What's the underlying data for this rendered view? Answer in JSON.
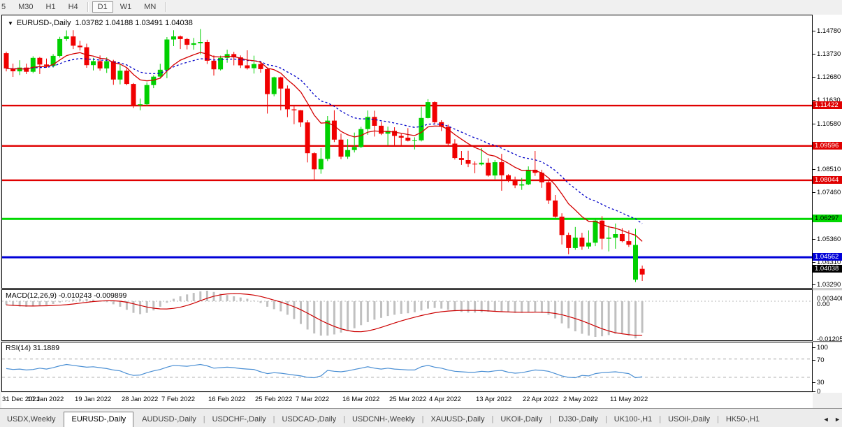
{
  "toolbar": {
    "timeframes": [
      "5",
      "M30",
      "H1",
      "H4",
      "D1",
      "W1",
      "MN"
    ],
    "active": "D1",
    "separators_after": [
      "H4",
      "MN"
    ]
  },
  "main_chart": {
    "dropdown_icon": "▼",
    "symbol": "EURUSD-,Daily",
    "ohlc_display": "1.03782 1.04188 1.03491 1.04038"
  },
  "chart_data": {
    "type": "candlestick",
    "symbol": "EURUSD",
    "timeframe": "Daily",
    "x_labels": [
      "31 Dec 2021",
      "10 Jan 2022",
      "19 Jan 2022",
      "28 Jan 2022",
      "7 Feb 2022",
      "16 Feb 2022",
      "25 Feb 2022",
      "7 Mar 2022",
      "16 Mar 2022",
      "25 Mar 2022",
      "4 Apr 2022",
      "13 Apr 2022",
      "22 Apr 2022",
      "2 May 2022",
      "11 May 2022"
    ],
    "x_label_bars": [
      0,
      6,
      13,
      20,
      26,
      33,
      40,
      46,
      53,
      60,
      66,
      73,
      80,
      86,
      93
    ],
    "price_axis": {
      "top_price": 1.155,
      "bottom_price": 1.03176,
      "ticks": [
        1.1478,
        1.1373,
        1.1268,
        1.1163,
        1.1058,
        1.0851,
        1.0746,
        1.0536,
        1.0431,
        1.0329
      ]
    },
    "colors": {
      "bull": "#00d000",
      "bear": "#f00000",
      "ma_fast": "#d40000",
      "ma_slow": "#0000c8",
      "hline_red": "#e00000",
      "hline_green": "#00d800",
      "hline_blue": "#0000d8",
      "macd_hist": "#c0c0c0",
      "macd_signal": "#cc0000",
      "rsi_line": "#4a8fd4",
      "level_dash": "#aaaaaa"
    },
    "hlines": [
      {
        "price": 1.11422,
        "label": "1.11422",
        "color": "#e00000",
        "text_color": "#ffffff"
      },
      {
        "price": 1.09596,
        "label": "1.09596",
        "color": "#e00000",
        "text_color": "#ffffff"
      },
      {
        "price": 1.08044,
        "label": "1.08044",
        "color": "#e00000",
        "text_color": "#ffffff"
      },
      {
        "price": 1.06297,
        "label": "1.06297",
        "color": "#00d800",
        "text_color": "#000000"
      },
      {
        "price": 1.04562,
        "label": "1.04562",
        "color": "#0000d8",
        "text_color": "#ffffff"
      }
    ],
    "current_price": {
      "value": 1.04038,
      "label": "1.04038",
      "bg": "#000000",
      "text_color": "#ffffff"
    },
    "ma_periods": {
      "fast": 10,
      "slow": 20
    },
    "candles": [
      [
        1.1379,
        1.1386,
        1.1297,
        1.131
      ],
      [
        1.131,
        1.1332,
        1.1272,
        1.1297
      ],
      [
        1.1297,
        1.1347,
        1.128,
        1.1314
      ],
      [
        1.1314,
        1.1332,
        1.1285,
        1.1295
      ],
      [
        1.1295,
        1.1365,
        1.1289,
        1.1358
      ],
      [
        1.1358,
        1.1362,
        1.1285,
        1.1328
      ],
      [
        1.1328,
        1.1355,
        1.1313,
        1.1322
      ],
      [
        1.1322,
        1.1375,
        1.1314,
        1.1367
      ],
      [
        1.1367,
        1.1453,
        1.1359,
        1.1443
      ],
      [
        1.1443,
        1.1482,
        1.1434,
        1.1455
      ],
      [
        1.1455,
        1.1483,
        1.1398,
        1.1413
      ],
      [
        1.1413,
        1.1435,
        1.1391,
        1.1406
      ],
      [
        1.1406,
        1.1422,
        1.1313,
        1.1325
      ],
      [
        1.1325,
        1.1358,
        1.1301,
        1.1343
      ],
      [
        1.1343,
        1.1369,
        1.13,
        1.131
      ],
      [
        1.131,
        1.136,
        1.129,
        1.1343
      ],
      [
        1.1343,
        1.1349,
        1.1236,
        1.126
      ],
      [
        1.126,
        1.1328,
        1.1238,
        1.13
      ],
      [
        1.13,
        1.131,
        1.1234,
        1.124
      ],
      [
        1.124,
        1.1244,
        1.1131,
        1.1144
      ],
      [
        1.1144,
        1.1174,
        1.1121,
        1.1148
      ],
      [
        1.1148,
        1.1247,
        1.1141,
        1.1235
      ],
      [
        1.1235,
        1.1279,
        1.1221,
        1.1273
      ],
      [
        1.1273,
        1.1331,
        1.1265,
        1.1304
      ],
      [
        1.1304,
        1.1452,
        1.1266,
        1.1441
      ],
      [
        1.1441,
        1.1483,
        1.1411,
        1.1455
      ],
      [
        1.1455,
        1.1459,
        1.1398,
        1.1443
      ],
      [
        1.1443,
        1.1448,
        1.1396,
        1.1417
      ],
      [
        1.1417,
        1.1448,
        1.1395,
        1.1424
      ],
      [
        1.1424,
        1.1488,
        1.1374,
        1.143
      ],
      [
        1.143,
        1.144,
        1.133,
        1.1345
      ],
      [
        1.1345,
        1.1369,
        1.1278,
        1.1306
      ],
      [
        1.1306,
        1.1368,
        1.1301,
        1.1358
      ],
      [
        1.1358,
        1.1395,
        1.1336,
        1.1375
      ],
      [
        1.1375,
        1.1385,
        1.1324,
        1.136
      ],
      [
        1.136,
        1.1369,
        1.1312,
        1.1324
      ],
      [
        1.1324,
        1.1392,
        1.1305,
        1.1311
      ],
      [
        1.1311,
        1.1368,
        1.1287,
        1.133
      ],
      [
        1.133,
        1.1344,
        1.1291,
        1.1307
      ],
      [
        1.1307,
        1.1315,
        1.1106,
        1.1194
      ],
      [
        1.1194,
        1.1273,
        1.1184,
        1.127
      ],
      [
        1.127,
        1.1273,
        1.1121,
        1.1219
      ],
      [
        1.1219,
        1.1233,
        1.109,
        1.1125
      ],
      [
        1.1125,
        1.1139,
        1.1058,
        1.1121
      ],
      [
        1.1121,
        1.1122,
        1.1045,
        1.1066
      ],
      [
        1.1066,
        1.1076,
        1.0885,
        1.0927
      ],
      [
        1.0927,
        1.0931,
        1.0806,
        1.0854
      ],
      [
        1.0854,
        1.095,
        1.0834,
        1.0901
      ],
      [
        1.0901,
        1.1095,
        1.0891,
        1.1074
      ],
      [
        1.1074,
        1.1121,
        1.0977,
        1.0988
      ],
      [
        1.0988,
        1.1015,
        1.09,
        1.0911
      ],
      [
        1.0911,
        1.099,
        1.0901,
        1.0941
      ],
      [
        1.0941,
        1.102,
        1.093,
        1.0955
      ],
      [
        1.0955,
        1.1046,
        1.095,
        1.1036
      ],
      [
        1.1036,
        1.112,
        1.101,
        1.1091
      ],
      [
        1.1091,
        1.1119,
        1.1002,
        1.1051
      ],
      [
        1.1051,
        1.1069,
        1.1009,
        1.1015
      ],
      [
        1.1015,
        1.1047,
        1.0962,
        1.1028
      ],
      [
        1.1028,
        1.1044,
        1.0963,
        1.1005
      ],
      [
        1.1005,
        1.1014,
        1.096,
        1.0997
      ],
      [
        1.0997,
        1.104,
        1.098,
        1.0983
      ],
      [
        1.0983,
        1.0999,
        1.0944,
        1.0985
      ],
      [
        1.0985,
        1.1137,
        1.098,
        1.1086
      ],
      [
        1.1086,
        1.1171,
        1.1084,
        1.1158
      ],
      [
        1.1158,
        1.1161,
        1.106,
        1.1067
      ],
      [
        1.1067,
        1.1076,
        1.1027,
        1.1046
      ],
      [
        1.1046,
        1.1056,
        1.096,
        1.097
      ],
      [
        1.097,
        1.099,
        1.0898,
        1.0905
      ],
      [
        1.0905,
        1.0937,
        1.0874,
        1.0896
      ],
      [
        1.0896,
        1.0938,
        1.0864,
        1.0879
      ],
      [
        1.0879,
        1.089,
        1.0836,
        1.0876
      ],
      [
        1.0876,
        1.095,
        1.0871,
        1.0884
      ],
      [
        1.0884,
        1.0904,
        1.0821,
        1.0826
      ],
      [
        1.0826,
        1.0896,
        1.0809,
        1.0886
      ],
      [
        1.0886,
        1.0924,
        1.0757,
        1.0827
      ],
      [
        1.0827,
        1.0832,
        1.0796,
        1.0808
      ],
      [
        1.0808,
        1.0821,
        1.0769,
        1.0781
      ],
      [
        1.0781,
        1.0815,
        1.0761,
        1.0786
      ],
      [
        1.0786,
        1.0867,
        1.0782,
        1.0852
      ],
      [
        1.0852,
        1.0937,
        1.0824,
        1.0838
      ],
      [
        1.0838,
        1.0852,
        1.077,
        1.0795
      ],
      [
        1.0795,
        1.0805,
        1.0697,
        1.0713
      ],
      [
        1.0713,
        1.0738,
        1.0635,
        1.064
      ],
      [
        1.064,
        1.0655,
        1.0514,
        1.0557
      ],
      [
        1.0557,
        1.0568,
        1.047,
        1.0498
      ],
      [
        1.0498,
        1.0593,
        1.049,
        1.0545
      ],
      [
        1.0545,
        1.0567,
        1.049,
        1.0505
      ],
      [
        1.0505,
        1.0578,
        1.0495,
        1.0522
      ],
      [
        1.0522,
        1.0632,
        1.0507,
        1.0622
      ],
      [
        1.0622,
        1.0642,
        1.0492,
        1.054
      ],
      [
        1.054,
        1.0599,
        1.0483,
        1.0545
      ],
      [
        1.0545,
        1.0609,
        1.0495,
        1.0561
      ],
      [
        1.0561,
        1.0588,
        1.0524,
        1.0529
      ],
      [
        1.0529,
        1.0578,
        1.0503,
        1.0513
      ],
      [
        1.0355,
        1.0585,
        1.0344,
        1.0512
      ],
      [
        1.03782,
        1.04188,
        1.03491,
        1.04038,
        "R"
      ]
    ],
    "macd": {
      "label": "MACD(12,26,9)",
      "values_label": "-0.010243 -0.009899",
      "axis_labels": [
        "0.003408",
        "0.00",
        "-0.012059"
      ],
      "signal_period": 9,
      "hist": [
        -0.0012,
        -0.0015,
        -0.0017,
        -0.0018,
        -0.0016,
        -0.0014,
        -0.0012,
        -0.0009,
        -0.0004,
        0.0002,
        0.0006,
        0.0008,
        0.0007,
        0.0005,
        0.0002,
        -0.0003,
        -0.001,
        -0.0018,
        -0.0028,
        -0.0038,
        -0.0042,
        -0.0038,
        -0.003,
        -0.0018,
        -0.0005,
        0.0008,
        0.0016,
        0.0022,
        0.0027,
        0.0032,
        0.0034,
        0.003,
        0.0024,
        0.002,
        0.0016,
        0.0012,
        0.0008,
        0.0002,
        -0.0006,
        -0.0018,
        -0.0026,
        -0.0033,
        -0.0044,
        -0.0058,
        -0.0074,
        -0.0092,
        -0.0105,
        -0.0112,
        -0.0112,
        -0.0108,
        -0.0102,
        -0.0096,
        -0.0088,
        -0.0078,
        -0.0068,
        -0.006,
        -0.0054,
        -0.0048,
        -0.0044,
        -0.0041,
        -0.0039,
        -0.0036,
        -0.003,
        -0.0024,
        -0.0022,
        -0.0024,
        -0.0028,
        -0.0032,
        -0.0035,
        -0.0037,
        -0.0037,
        -0.0036,
        -0.0034,
        -0.0033,
        -0.0034,
        -0.0036,
        -0.0038,
        -0.0038,
        -0.0037,
        -0.0036,
        -0.0038,
        -0.0044,
        -0.0056,
        -0.0072,
        -0.0088,
        -0.0098,
        -0.0106,
        -0.0112,
        -0.0116,
        -0.0114,
        -0.011,
        -0.0106,
        -0.0104,
        -0.0112,
        -0.0121,
        -0.010243
      ]
    },
    "rsi": {
      "label": "RSI(14) 31.1889",
      "axis_labels": [
        "100",
        "70",
        "30",
        "0"
      ],
      "levels": [
        70,
        30
      ],
      "values": [
        49,
        47,
        48,
        46,
        47,
        50,
        48,
        51,
        55,
        58,
        56,
        54,
        52,
        53,
        51,
        49,
        46,
        44,
        38,
        34,
        35,
        40,
        44,
        47,
        52,
        56,
        55,
        54,
        56,
        58,
        55,
        50,
        51,
        52,
        51,
        49,
        48,
        47,
        42,
        38,
        40,
        39,
        37,
        35,
        33,
        30,
        29,
        33,
        45,
        43,
        42,
        44,
        47,
        50,
        53,
        50,
        48,
        50,
        48,
        47,
        46,
        46,
        53,
        56,
        52,
        50,
        46,
        43,
        42,
        41,
        41,
        43,
        42,
        44,
        45,
        41,
        39,
        40,
        43,
        46,
        45,
        43,
        38,
        33,
        30,
        29,
        34,
        33,
        38,
        40,
        41,
        42,
        40,
        38,
        29,
        31.19
      ]
    }
  },
  "tabs": {
    "items": [
      "USDX,Weekly",
      "EURUSD-,Daily",
      "AUDUSD-,Daily",
      "USDCHF-,Daily",
      "USDCAD-,Daily",
      "USDCNH-,Weekly",
      "XAUUSD-,Daily",
      "UKOil-,Daily",
      "DJ30-,Daily",
      "UK100-,H1",
      "USOil-,Daily",
      "HK50-,H1"
    ],
    "active_index": 1,
    "scroll_left_icon": "◄",
    "scroll_right_icon": "►"
  }
}
